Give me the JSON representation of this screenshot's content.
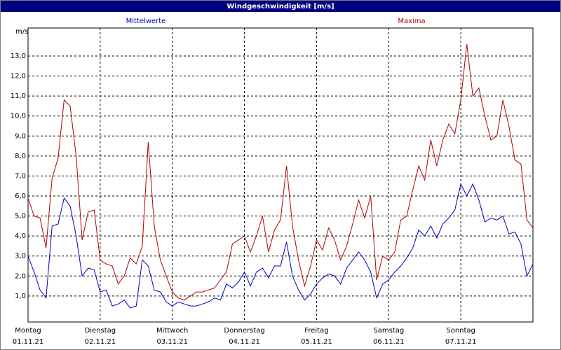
{
  "chart_data": {
    "type": "line",
    "title": "Windgeschwindigkeit [m/s]",
    "y_label": "m/s",
    "x": [
      0,
      2,
      4,
      6,
      8,
      10,
      12,
      14,
      16,
      18,
      20,
      22,
      24,
      26,
      28,
      30,
      32,
      34,
      36,
      38,
      40,
      42,
      44,
      46,
      48,
      50,
      52,
      54,
      56,
      58,
      60,
      62,
      64,
      66,
      68,
      70,
      72,
      74,
      76,
      78,
      80,
      82,
      84,
      86,
      88,
      90,
      92,
      94,
      96,
      98,
      100,
      102,
      104,
      106,
      108,
      110,
      112,
      114,
      116,
      118,
      120,
      122,
      124,
      126,
      128,
      130,
      132,
      134,
      136,
      138,
      140,
      142,
      144,
      146,
      148,
      150,
      152,
      154,
      156,
      158,
      160,
      162,
      164,
      166,
      168
    ],
    "series": [
      {
        "name": "Mittelwerte",
        "color": "#0000c0",
        "values": [
          3.0,
          2.2,
          1.3,
          0.9,
          4.5,
          4.6,
          5.9,
          5.5,
          4.0,
          2.0,
          2.4,
          2.3,
          1.2,
          1.3,
          0.5,
          0.6,
          0.8,
          0.4,
          0.5,
          2.8,
          2.5,
          1.3,
          1.2,
          0.7,
          0.5,
          0.7,
          0.6,
          0.5,
          0.5,
          0.6,
          0.7,
          0.9,
          0.8,
          1.6,
          1.4,
          1.7,
          2.2,
          1.5,
          2.2,
          2.4,
          1.9,
          2.5,
          2.5,
          3.7,
          2.0,
          1.3,
          0.8,
          1.1,
          1.6,
          1.9,
          2.1,
          2.0,
          1.6,
          2.4,
          2.8,
          3.2,
          2.8,
          2.2,
          0.9,
          1.6,
          1.8,
          2.2,
          2.5,
          2.9,
          3.4,
          4.3,
          4.0,
          4.5,
          3.9,
          4.6,
          4.9,
          5.3,
          6.6,
          6.0,
          6.6,
          5.8,
          4.7,
          4.9,
          4.8,
          5.0,
          4.1,
          4.2,
          3.6,
          2.0,
          2.6
        ]
      },
      {
        "name": "Maxima",
        "color": "#b00000",
        "values": [
          5.9,
          5.0,
          4.9,
          3.4,
          6.9,
          7.9,
          10.8,
          10.5,
          8.0,
          3.8,
          5.2,
          5.3,
          2.8,
          2.6,
          2.5,
          1.6,
          2.0,
          2.9,
          2.6,
          3.5,
          8.7,
          4.5,
          2.8,
          2.0,
          1.2,
          0.9,
          0.8,
          1.0,
          1.2,
          1.2,
          1.3,
          1.4,
          1.8,
          2.2,
          3.6,
          3.8,
          4.0,
          3.2,
          4.0,
          5.0,
          3.2,
          4.3,
          4.8,
          7.5,
          4.5,
          2.8,
          1.5,
          2.5,
          3.8,
          3.3,
          4.4,
          3.8,
          2.8,
          3.5,
          4.6,
          5.8,
          4.9,
          6.0,
          1.8,
          3.0,
          2.8,
          3.2,
          4.8,
          5.0,
          6.3,
          7.5,
          6.8,
          8.8,
          7.5,
          8.8,
          9.6,
          9.1,
          10.8,
          13.6,
          11.0,
          11.4,
          10.0,
          8.8,
          9.0,
          10.8,
          9.5,
          7.8,
          7.6,
          4.8,
          4.4
        ]
      }
    ],
    "xlim": [
      0,
      168
    ],
    "xticks": [
      {
        "value": 0,
        "label": "Montag"
      },
      {
        "value": 24,
        "label": "Dienstag"
      },
      {
        "value": 48,
        "label": "Mittwoch"
      },
      {
        "value": 72,
        "label": "Donnerstag"
      },
      {
        "value": 96,
        "label": "Freitag"
      },
      {
        "value": 120,
        "label": "Samstag"
      },
      {
        "value": 144,
        "label": "Sonntag"
      }
    ],
    "xtick_dates": [
      "01.11.21",
      "02.11.21",
      "03.11.21",
      "04.11.21",
      "05.11.21",
      "06.11.21",
      "07.11.21"
    ],
    "ylim": [
      -0.3,
      14.4
    ],
    "yticks": [
      {
        "value": 1,
        "label": "1,0"
      },
      {
        "value": 2,
        "label": "2,0"
      },
      {
        "value": 3,
        "label": "3,0"
      },
      {
        "value": 4,
        "label": "4,0"
      },
      {
        "value": 5,
        "label": "5,0"
      },
      {
        "value": 6,
        "label": "6,0"
      },
      {
        "value": 7,
        "label": "7,0"
      },
      {
        "value": 8,
        "label": "8,0"
      },
      {
        "value": 9,
        "label": "9,0"
      },
      {
        "value": 10,
        "label": "10,0"
      },
      {
        "value": 11,
        "label": "11,0"
      },
      {
        "value": 12,
        "label": "12,0"
      },
      {
        "value": 13,
        "label": "13,0"
      }
    ],
    "grid": true
  }
}
